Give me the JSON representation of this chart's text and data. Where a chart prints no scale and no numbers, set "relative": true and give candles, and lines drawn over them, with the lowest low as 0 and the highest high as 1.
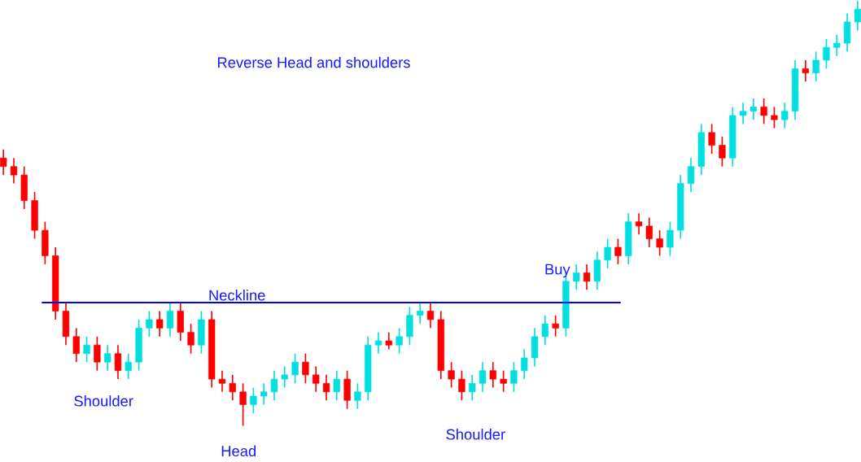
{
  "chart_data": {
    "type": "candlestick",
    "title": "Reverse Head and shoulders",
    "relative": true,
    "categories": [
      null,
      null,
      null,
      null,
      null,
      null,
      null,
      null,
      null,
      null,
      null,
      null,
      null,
      null,
      null,
      null,
      null,
      null,
      null,
      null,
      null,
      null,
      null,
      null,
      null,
      null,
      null,
      null,
      null,
      null,
      null,
      null,
      null,
      null,
      null,
      null,
      null,
      null,
      null,
      null,
      null,
      null,
      null,
      null,
      null,
      null,
      null,
      null,
      null,
      null,
      null,
      null,
      null,
      null,
      null,
      null,
      null,
      null,
      null,
      null,
      null,
      null,
      null,
      null,
      null,
      null,
      null,
      null,
      null,
      null,
      null,
      null,
      null,
      null,
      null,
      null,
      null,
      null,
      null,
      null,
      null,
      null,
      null
    ],
    "colors": [
      "#ff0000",
      "#ff0000",
      "#ff0000",
      "#ff0000",
      "#ff0000",
      "#ff0000",
      "#ff0000",
      "#ff0000",
      "#00e0e0",
      "#ff0000",
      "#00e0e0",
      "#ff0000",
      "#00e0e0",
      "#00e0e0",
      "#00e0e0",
      "#ff0000",
      "#00e0e0",
      "#ff0000",
      "#ff0000",
      "#00e0e0",
      "#ff0000",
      "#ff0000",
      "#ff0000",
      "#ff0000",
      "#00e0e0",
      "#00e0e0",
      "#00e0e0",
      "#00e0e0",
      "#00e0e0",
      "#ff0000",
      "#ff0000",
      "#ff0000",
      "#00e0e0",
      "#ff0000",
      "#00e0e0",
      "#00e0e0",
      "#00e0e0",
      "#ff0000",
      "#00e0e0",
      "#00e0e0",
      "#00e0e0",
      "#ff0000",
      "#ff0000",
      "#ff0000",
      "#ff0000",
      "#00e0e0",
      "#00e0e0",
      "#ff0000",
      "#ff0000",
      "#00e0e0",
      "#00e0e0",
      "#00e0e0",
      "#00e0e0",
      "#ff0000",
      "#00e0e0",
      "#00e0e0",
      "#ff0000",
      "#00e0e0",
      "#00e0e0",
      "#ff0000",
      "#00e0e0",
      "#ff0000",
      "#ff0000",
      "#ff0000",
      "#00e0e0",
      "#00e0e0",
      "#00e0e0",
      "#00e0e0",
      "#ff0000",
      "#ff0000",
      "#00e0e0",
      "#00e0e0",
      "#00e0e0",
      "#ff0000",
      "#ff0000",
      "#00e0e0",
      "#00e0e0",
      "#ff0000",
      "#00e0e0",
      "#00e0e0",
      "#00e0e0",
      "#00e0e0",
      "#00e0e0"
    ],
    "ohlc": [
      [
        0.63,
        0.65,
        0.59,
        0.61
      ],
      [
        0.61,
        0.63,
        0.57,
        0.59
      ],
      [
        0.59,
        0.61,
        0.51,
        0.53
      ],
      [
        0.53,
        0.55,
        0.44,
        0.46
      ],
      [
        0.46,
        0.48,
        0.38,
        0.4
      ],
      [
        0.4,
        0.42,
        0.25,
        0.27
      ],
      [
        0.27,
        0.29,
        0.19,
        0.21
      ],
      [
        0.21,
        0.23,
        0.15,
        0.17
      ],
      [
        0.17,
        0.21,
        0.15,
        0.19
      ],
      [
        0.19,
        0.21,
        0.13,
        0.15
      ],
      [
        0.15,
        0.19,
        0.13,
        0.17
      ],
      [
        0.17,
        0.19,
        0.11,
        0.13
      ],
      [
        0.13,
        0.17,
        0.11,
        0.15
      ],
      [
        0.15,
        0.25,
        0.13,
        0.23
      ],
      [
        0.23,
        0.27,
        0.21,
        0.25
      ],
      [
        0.25,
        0.27,
        0.21,
        0.23
      ],
      [
        0.23,
        0.29,
        0.21,
        0.27
      ],
      [
        0.27,
        0.29,
        0.2,
        0.22
      ],
      [
        0.22,
        0.24,
        0.17,
        0.19
      ],
      [
        0.19,
        0.27,
        0.17,
        0.25
      ],
      [
        0.25,
        0.27,
        0.09,
        0.11
      ],
      [
        0.11,
        0.13,
        0.08,
        0.1
      ],
      [
        0.1,
        0.12,
        0.06,
        0.08
      ],
      [
        0.08,
        0.1,
        0.0,
        0.05
      ],
      [
        0.05,
        0.09,
        0.03,
        0.07
      ],
      [
        0.07,
        0.1,
        0.05,
        0.08
      ],
      [
        0.08,
        0.13,
        0.06,
        0.11
      ],
      [
        0.11,
        0.14,
        0.09,
        0.12
      ],
      [
        0.12,
        0.17,
        0.1,
        0.15
      ],
      [
        0.15,
        0.17,
        0.1,
        0.12
      ],
      [
        0.12,
        0.14,
        0.08,
        0.1
      ],
      [
        0.1,
        0.12,
        0.06,
        0.08
      ],
      [
        0.08,
        0.13,
        0.06,
        0.11
      ],
      [
        0.11,
        0.13,
        0.04,
        0.06
      ],
      [
        0.06,
        0.1,
        0.04,
        0.08
      ],
      [
        0.08,
        0.21,
        0.06,
        0.19
      ],
      [
        0.19,
        0.22,
        0.17,
        0.2
      ],
      [
        0.2,
        0.22,
        0.18,
        0.19
      ],
      [
        0.19,
        0.23,
        0.17,
        0.21
      ],
      [
        0.21,
        0.28,
        0.19,
        0.26
      ],
      [
        0.26,
        0.29,
        0.24,
        0.27
      ],
      [
        0.27,
        0.29,
        0.23,
        0.25
      ],
      [
        0.25,
        0.27,
        0.11,
        0.13
      ],
      [
        0.13,
        0.15,
        0.09,
        0.11
      ],
      [
        0.11,
        0.13,
        0.06,
        0.08
      ],
      [
        0.08,
        0.12,
        0.06,
        0.1
      ],
      [
        0.1,
        0.15,
        0.08,
        0.13
      ],
      [
        0.13,
        0.15,
        0.09,
        0.11
      ],
      [
        0.11,
        0.13,
        0.08,
        0.1
      ],
      [
        0.1,
        0.15,
        0.08,
        0.13
      ],
      [
        0.13,
        0.18,
        0.11,
        0.16
      ],
      [
        0.16,
        0.23,
        0.14,
        0.21
      ],
      [
        0.21,
        0.26,
        0.19,
        0.24
      ],
      [
        0.24,
        0.26,
        0.21,
        0.23
      ],
      [
        0.23,
        0.36,
        0.21,
        0.34
      ],
      [
        0.34,
        0.38,
        0.32,
        0.36
      ],
      [
        0.36,
        0.38,
        0.32,
        0.34
      ],
      [
        0.34,
        0.41,
        0.32,
        0.39
      ],
      [
        0.39,
        0.44,
        0.37,
        0.42
      ],
      [
        0.42,
        0.44,
        0.38,
        0.4
      ],
      [
        0.4,
        0.5,
        0.38,
        0.48
      ],
      [
        0.48,
        0.5,
        0.45,
        0.47
      ],
      [
        0.47,
        0.49,
        0.42,
        0.44
      ],
      [
        0.44,
        0.46,
        0.4,
        0.42
      ],
      [
        0.42,
        0.48,
        0.4,
        0.46
      ],
      [
        0.46,
        0.59,
        0.44,
        0.57
      ],
      [
        0.57,
        0.63,
        0.55,
        0.61
      ],
      [
        0.61,
        0.71,
        0.59,
        0.69
      ],
      [
        0.69,
        0.71,
        0.64,
        0.66
      ],
      [
        0.66,
        0.68,
        0.61,
        0.63
      ],
      [
        0.63,
        0.75,
        0.61,
        0.73
      ],
      [
        0.73,
        0.76,
        0.71,
        0.74
      ],
      [
        0.74,
        0.77,
        0.72,
        0.75
      ],
      [
        0.75,
        0.77,
        0.71,
        0.73
      ],
      [
        0.73,
        0.75,
        0.7,
        0.72
      ],
      [
        0.72,
        0.76,
        0.7,
        0.74
      ],
      [
        0.74,
        0.86,
        0.72,
        0.84
      ],
      [
        0.84,
        0.86,
        0.81,
        0.83
      ],
      [
        0.83,
        0.88,
        0.81,
        0.86
      ],
      [
        0.86,
        0.91,
        0.84,
        0.89
      ],
      [
        0.89,
        0.92,
        0.87,
        0.9
      ],
      [
        0.9,
        0.97,
        0.88,
        0.95
      ],
      [
        0.95,
        1.0,
        0.93,
        0.98
      ]
    ],
    "ref_lines": [
      {
        "axis": "y",
        "value": 0.29,
        "label": "Neckline",
        "color": "#0000ff"
      }
    ],
    "annotations": [
      "Shoulder",
      "Head",
      "Shoulder",
      "Buy"
    ]
  }
}
